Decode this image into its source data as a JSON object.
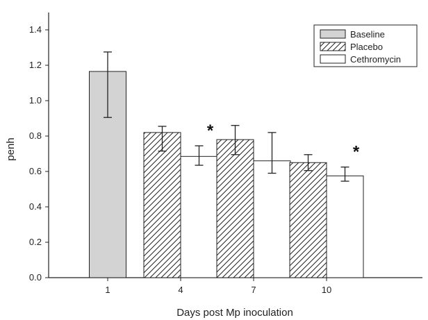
{
  "chart_data": {
    "type": "bar",
    "title": "",
    "xlabel": "Days post Mp inoculation",
    "ylabel": "penh",
    "ylim": [
      0,
      1.4
    ],
    "yticks": [
      "0.0",
      "0.2",
      "0.4",
      "0.6",
      "0.8",
      "1.0",
      "1.2",
      "1.4"
    ],
    "categories": [
      "1",
      "4",
      "7",
      "10"
    ],
    "legend": "top-right",
    "grid": false,
    "series": [
      {
        "name": "Baseline",
        "fill": "#d3d3d3",
        "pattern": "solid",
        "values": [
          1.165,
          null,
          null,
          null
        ],
        "err_low": [
          0.905,
          null,
          null,
          null
        ],
        "err_high": [
          1.275,
          null,
          null,
          null
        ]
      },
      {
        "name": "Placebo",
        "fill": "#ffffff",
        "pattern": "hatched",
        "values": [
          null,
          0.82,
          0.78,
          0.65
        ],
        "err_low": [
          null,
          0.715,
          0.695,
          0.605
        ],
        "err_high": [
          null,
          0.855,
          0.86,
          0.695
        ]
      },
      {
        "name": "Cethromycin",
        "fill": "#ffffff",
        "pattern": "solid",
        "values": [
          null,
          0.685,
          0.66,
          0.575
        ],
        "err_low": [
          null,
          0.635,
          0.59,
          0.545
        ],
        "err_high": [
          null,
          0.745,
          0.82,
          0.625
        ]
      }
    ],
    "annotations": [
      {
        "text": "*",
        "category": "4",
        "series": "Cethromycin",
        "y": 0.84
      },
      {
        "text": "*",
        "category": "10",
        "series": "Cethromycin",
        "y": 0.72
      }
    ]
  }
}
